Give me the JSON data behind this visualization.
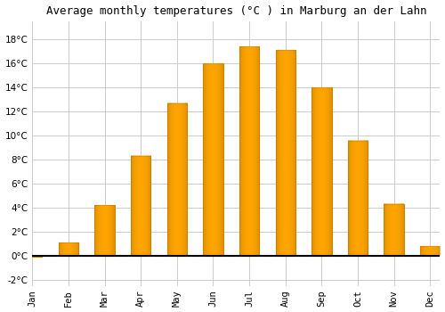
{
  "months": [
    "Jan",
    "Feb",
    "Mar",
    "Apr",
    "May",
    "Jun",
    "Jul",
    "Aug",
    "Sep",
    "Oct",
    "Nov",
    "Dec"
  ],
  "values": [
    -0.1,
    1.1,
    4.2,
    8.3,
    12.7,
    16.0,
    17.4,
    17.1,
    14.0,
    9.6,
    4.3,
    0.8
  ],
  "bar_color": "#FFA500",
  "bar_edge_color": "#CC8800",
  "title": "Average monthly temperatures (°C ) in Marburg an der Lahn",
  "title_fontsize": 9.0,
  "background_color": "#ffffff",
  "grid_color": "#cccccc",
  "ylim": [
    -2.5,
    19.5
  ],
  "yticks": [
    -2,
    0,
    2,
    4,
    6,
    8,
    10,
    12,
    14,
    16,
    18
  ],
  "tick_fontsize": 7.5,
  "bar_width": 0.55,
  "zero_line_color": "#000000"
}
